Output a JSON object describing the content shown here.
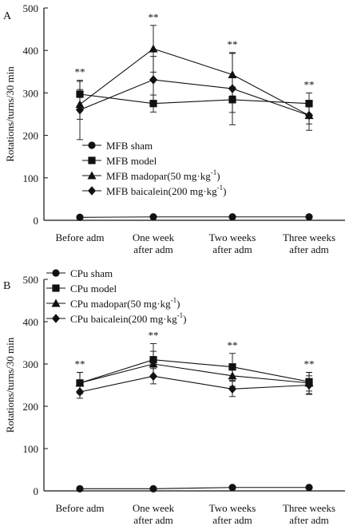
{
  "chart_data": [
    {
      "panel_label": "A",
      "type": "line",
      "ylabel": "Rotations/turns/30 min",
      "ylim": [
        0,
        500
      ],
      "yticks": [
        0,
        100,
        200,
        300,
        400,
        500
      ],
      "categories": [
        [
          "Before adm"
        ],
        [
          "One week",
          "after adm"
        ],
        [
          "Two weeks",
          "after adm"
        ],
        [
          "Three weeks",
          "after adm"
        ]
      ],
      "significance": [
        "**",
        "**",
        "**",
        "**"
      ],
      "legend_position": "middle-left",
      "series": [
        {
          "name": "MFB sham",
          "marker": "circle",
          "values": [
            7,
            8,
            8,
            8
          ],
          "err": [
            0,
            0,
            0,
            0
          ]
        },
        {
          "name": "MFB model",
          "marker": "square",
          "values": [
            297,
            275,
            284,
            275
          ],
          "err": [
            30,
            20,
            30,
            25
          ]
        },
        {
          "name": "MFB madopar(50 mg·kg",
          "name_sup": "-1",
          "name_after": ")",
          "marker": "triangle",
          "values": [
            273,
            404,
            343,
            247
          ],
          "err": [
            35,
            55,
            50,
            20
          ]
        },
        {
          "name": "MFB baicalein(200 mg·kg",
          "name_sup": "-1",
          "name_after": ")",
          "marker": "diamond",
          "values": [
            260,
            331,
            310,
            247
          ],
          "err": [
            70,
            55,
            85,
            35
          ]
        }
      ]
    },
    {
      "panel_label": "B",
      "type": "line",
      "ylabel": "Rotations/turns/30 min",
      "ylim": [
        0,
        500
      ],
      "yticks": [
        0,
        100,
        200,
        300,
        400,
        500
      ],
      "categories": [
        [
          "Before adm"
        ],
        [
          "One week",
          "after adm"
        ],
        [
          "Two weeks",
          "after adm"
        ],
        [
          "Three weeks",
          "after adm"
        ]
      ],
      "significance": [
        "**",
        "**",
        "**",
        "**"
      ],
      "legend_position": "top-left",
      "series": [
        {
          "name": "CPu sham",
          "marker": "circle",
          "values": [
            5,
            5,
            8,
            8
          ],
          "err": [
            0,
            0,
            0,
            0
          ]
        },
        {
          "name": "CPu model",
          "marker": "square",
          "values": [
            255,
            310,
            293,
            258
          ],
          "err": [
            25,
            38,
            32,
            22
          ]
        },
        {
          "name": "CPu madopar(50 mg·kg",
          "name_sup": "-1",
          "name_after": ")",
          "marker": "triangle",
          "values": [
            255,
            300,
            272,
            255
          ],
          "err": [
            25,
            30,
            25,
            25
          ]
        },
        {
          "name": "CPu baicalein(200 mg·kg",
          "name_sup": "-1",
          "name_after": ")",
          "marker": "diamond",
          "values": [
            234,
            271,
            241,
            250
          ],
          "err": [
            15,
            18,
            18,
            22
          ]
        }
      ]
    }
  ]
}
